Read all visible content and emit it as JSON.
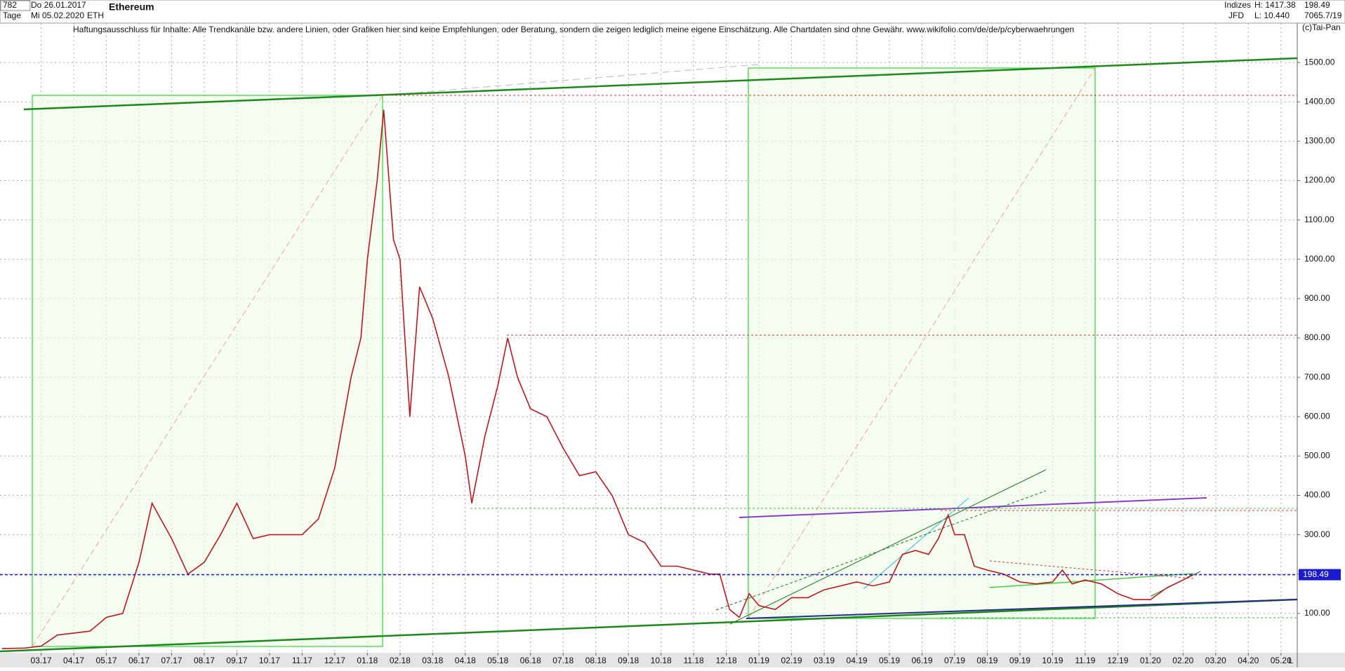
{
  "header": {
    "count": "782",
    "period": "Tage",
    "from": "Do 26.01.2017",
    "to": "Mi 05.02.2020",
    "title": "Ethereum",
    "symbol": "ETH",
    "group": "Indizes",
    "source": "JFD",
    "high": "H: 1417.38",
    "low": "L: 10.440",
    "last": "198.49",
    "volume": "7065.7/19",
    "copyright": "(c)Tai-Pan",
    "axis_marker": "L"
  },
  "chart_data": {
    "type": "line",
    "subtitle": "Haftungsausschluss für Inhalte: Alle Trendkanäle bzw. andere Linien, oder Grafiken hier sind keine Empfehlungen, oder Beratung, sondern die zeigen lediglich meine eigene Einschätzung. Alle Chartdaten sind ohne Gewähr.  www.wikifolio.com/de/de/p/cyberwaehrungen",
    "x": [
      -1.2,
      -0.5,
      0,
      0.5,
      1,
      1.5,
      2,
      2.5,
      3,
      3.4,
      4,
      4.5,
      5,
      5.5,
      6,
      6.5,
      7,
      7.5,
      8,
      8.5,
      9,
      9.5,
      9.8,
      10,
      10.3,
      10.5,
      10.8,
      11,
      11.3,
      11.6,
      12,
      12.5,
      13,
      13.2,
      13.6,
      14,
      14.3,
      14.6,
      15,
      15.5,
      16,
      16.5,
      17,
      17.5,
      18,
      18.5,
      19,
      19.5,
      20,
      20.5,
      20.8,
      21.1,
      21.4,
      21.7,
      22,
      22.5,
      23,
      23.5,
      24,
      24.5,
      25,
      25.5,
      26,
      26.4,
      26.8,
      27.2,
      27.5,
      27.8,
      28,
      28.3,
      28.6,
      29,
      29.5,
      30,
      30.5,
      31,
      31.3,
      31.6,
      32,
      32.5,
      33,
      33.5,
      34,
      34.5,
      35,
      35.3
    ],
    "values": [
      10.5,
      12,
      17,
      45,
      50,
      55,
      90,
      100,
      230,
      380,
      290,
      200,
      230,
      300,
      380,
      290,
      300,
      300,
      300,
      340,
      470,
      700,
      800,
      1000,
      1200,
      1380,
      1050,
      1000,
      600,
      930,
      850,
      700,
      500,
      380,
      550,
      680,
      800,
      700,
      620,
      600,
      520,
      450,
      460,
      400,
      300,
      280,
      220,
      220,
      210,
      200,
      200,
      110,
      90,
      150,
      120,
      110,
      140,
      140,
      160,
      170,
      180,
      170,
      180,
      250,
      260,
      250,
      290,
      350,
      300,
      300,
      220,
      210,
      200,
      180,
      175,
      180,
      210,
      175,
      185,
      175,
      150,
      135,
      135,
      165,
      185,
      198.49
    ],
    "color": "#c0161b",
    "current_price": 198.49,
    "xlim": [
      -1.26,
      38.5
    ],
    "xticks": [
      {
        "value": 0,
        "label": "03.17"
      },
      {
        "value": 1,
        "label": "04.17"
      },
      {
        "value": 2,
        "label": "05.17"
      },
      {
        "value": 3,
        "label": "06.17"
      },
      {
        "value": 4,
        "label": "07.17"
      },
      {
        "value": 5,
        "label": "08.17"
      },
      {
        "value": 6,
        "label": "09.17"
      },
      {
        "value": 7,
        "label": "10.17"
      },
      {
        "value": 8,
        "label": "11.17"
      },
      {
        "value": 9,
        "label": "12.17"
      },
      {
        "value": 10,
        "label": "01.18"
      },
      {
        "value": 11,
        "label": "02.18"
      },
      {
        "value": 12,
        "label": "03.18"
      },
      {
        "value": 13,
        "label": "04.18"
      },
      {
        "value": 14,
        "label": "05.18"
      },
      {
        "value": 15,
        "label": "06.18"
      },
      {
        "value": 16,
        "label": "07.18"
      },
      {
        "value": 17,
        "label": "08.18"
      },
      {
        "value": 18,
        "label": "09.18"
      },
      {
        "value": 19,
        "label": "10.18"
      },
      {
        "value": 20,
        "label": "11.18"
      },
      {
        "value": 21,
        "label": "12.18"
      },
      {
        "value": 22,
        "label": "01.19"
      },
      {
        "value": 23,
        "label": "02.19"
      },
      {
        "value": 24,
        "label": "03.19"
      },
      {
        "value": 25,
        "label": "04.19"
      },
      {
        "value": 26,
        "label": "05.19"
      },
      {
        "value": 27,
        "label": "06.19"
      },
      {
        "value": 28,
        "label": "07.19"
      },
      {
        "value": 29,
        "label": "08.19"
      },
      {
        "value": 30,
        "label": "09.19"
      },
      {
        "value": 31,
        "label": "10.19"
      },
      {
        "value": 32,
        "label": "11.19"
      },
      {
        "value": 33,
        "label": "12.19"
      },
      {
        "value": 34,
        "label": "01.20"
      },
      {
        "value": 35,
        "label": "02.20"
      },
      {
        "value": 36,
        "label": "03.20"
      },
      {
        "value": 37,
        "label": "04.20"
      },
      {
        "value": 38,
        "label": "05.20"
      }
    ],
    "ylim": [
      0,
      1600
    ],
    "yticks": [
      {
        "value": 100,
        "label": "100.00"
      },
      {
        "value": 200,
        "label": "200.00"
      },
      {
        "value": 300,
        "label": "300.00"
      },
      {
        "value": 400,
        "label": "400.00"
      },
      {
        "value": 500,
        "label": "500.00"
      },
      {
        "value": 600,
        "label": "600.00"
      },
      {
        "value": 700,
        "label": "700.00"
      },
      {
        "value": 800,
        "label": "800.00"
      },
      {
        "value": 900,
        "label": "900.00"
      },
      {
        "value": 1000,
        "label": "1000.00"
      },
      {
        "value": 1100,
        "label": "1100.00"
      },
      {
        "value": 1200,
        "label": "1200.00"
      },
      {
        "value": 1300,
        "label": "1300.00"
      },
      {
        "value": 1400,
        "label": "1400.00"
      },
      {
        "value": 1500,
        "label": "1500.00"
      }
    ],
    "grid": true
  }
}
